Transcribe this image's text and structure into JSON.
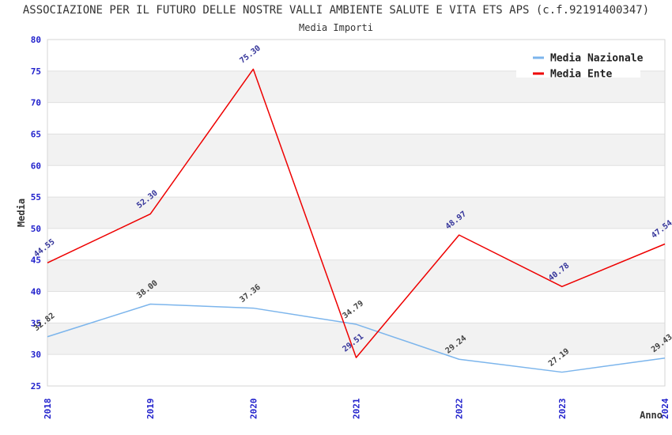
{
  "chart_data": {
    "type": "line",
    "title": "ASSOCIAZIONE PER IL FUTURO DELLE NOSTRE VALLI AMBIENTE SALUTE E VITA ETS APS (c.f.92191400347)",
    "subtitle": "Media Importi",
    "xlabel": "Anno",
    "ylabel": "Media",
    "categories": [
      "2018",
      "2019",
      "2020",
      "2021",
      "2022",
      "2023",
      "2024"
    ],
    "series": [
      {
        "name": "Media Nazionale",
        "color": "#7CB5EC",
        "label_color": "#404040",
        "values": [
          32.82,
          38.0,
          37.36,
          34.79,
          29.24,
          27.19,
          29.43
        ]
      },
      {
        "name": "Media Ente",
        "color": "#EE0000",
        "label_color": "#333399",
        "values": [
          44.55,
          52.3,
          75.3,
          29.51,
          48.97,
          40.78,
          47.54
        ]
      }
    ],
    "ylim": [
      25,
      80
    ],
    "ytick_step": 5,
    "grid": true,
    "legend_position": "top-right",
    "colors": {
      "band_fill": "#F2F2F2",
      "grid_line": "#E0E0E0",
      "plot_border": "#D6D6D6",
      "tick_label": "#2222CC",
      "axis_title": "#333333",
      "legend_text": "#222222",
      "legend_bg": "#FFFFFF"
    }
  }
}
